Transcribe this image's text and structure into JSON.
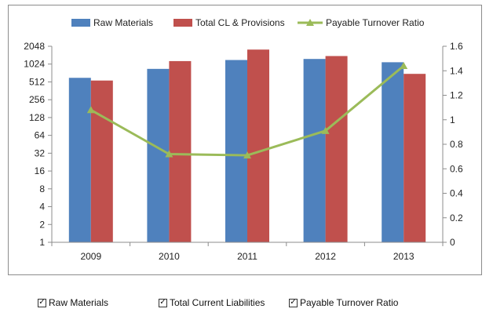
{
  "chart_data": {
    "type": "bar",
    "categories": [
      "2009",
      "2010",
      "2011",
      "2012",
      "2013"
    ],
    "series": [
      {
        "name": "Raw Materials",
        "kind": "bar",
        "axis": "left",
        "color": "#4f81bd",
        "values": [
          600,
          850,
          1200,
          1250,
          1100
        ]
      },
      {
        "name": "Total CL & Provisions",
        "kind": "bar",
        "axis": "left",
        "color": "#c0504d",
        "values": [
          540,
          1150,
          1800,
          1400,
          700
        ]
      },
      {
        "name": "Payable Turnover Ratio",
        "kind": "line",
        "axis": "right",
        "color": "#9bbb59",
        "values": [
          1.08,
          0.72,
          0.71,
          0.91,
          1.44
        ]
      }
    ],
    "left_axis": {
      "scale": "log2",
      "ticks": [
        "1",
        "2",
        "4",
        "8",
        "16",
        "32",
        "64",
        "128",
        "256",
        "512",
        "1024",
        "2048"
      ],
      "range": [
        1,
        2048
      ]
    },
    "right_axis": {
      "scale": "linear",
      "ticks": [
        "0",
        "0.2",
        "0.4",
        "0.6",
        "0.8",
        "1",
        "1.2",
        "1.4",
        "1.6"
      ],
      "range": [
        0,
        1.6
      ]
    },
    "legend_position": "top",
    "grid": false
  },
  "controls": [
    {
      "label": "Raw Materials",
      "checked": true
    },
    {
      "label": "Total Current Liabilities",
      "checked": true
    },
    {
      "label": "Payable Turnover Ratio",
      "checked": true
    }
  ]
}
